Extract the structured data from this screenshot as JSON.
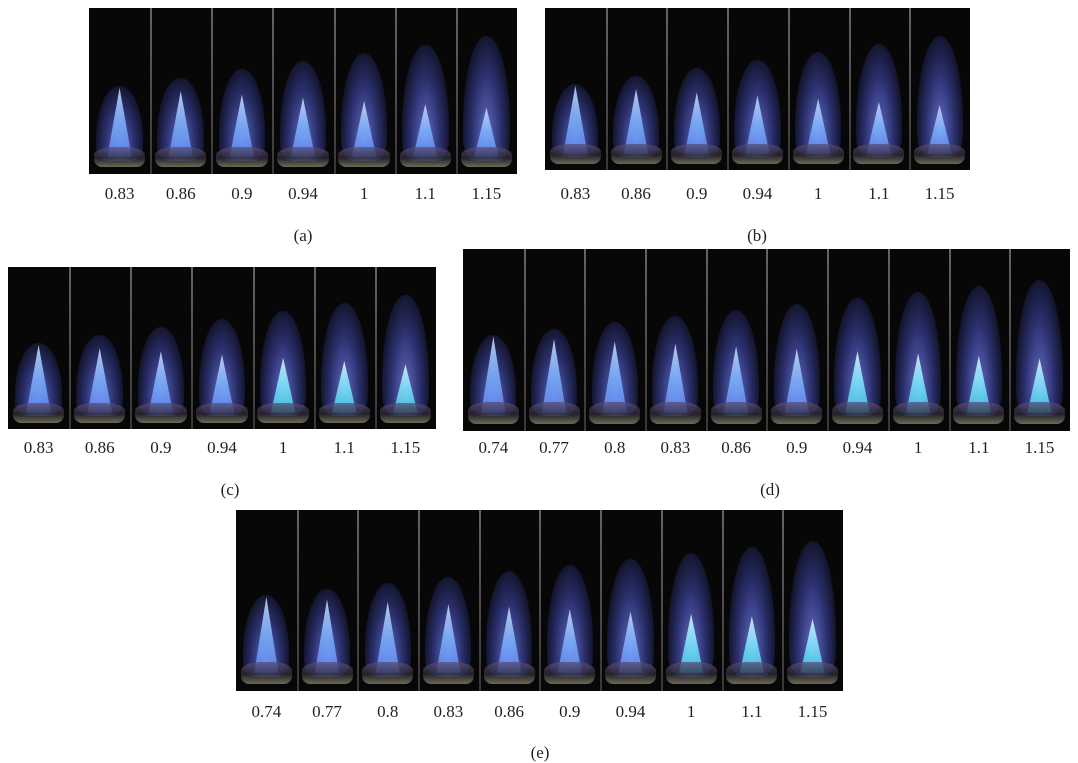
{
  "panels": [
    {
      "caption": "(a)",
      "labels": [
        "0.83",
        "0.86",
        "0.9",
        "0.94",
        "1",
        "1.1",
        "1.15"
      ],
      "teal_from": 99
    },
    {
      "caption": "(b)",
      "labels": [
        "0.83",
        "0.86",
        "0.9",
        "0.94",
        "1",
        "1.1",
        "1.15"
      ],
      "teal_from": 99
    },
    {
      "caption": "(c)",
      "labels": [
        "0.83",
        "0.86",
        "0.9",
        "0.94",
        "1",
        "1.1",
        "1.15"
      ],
      "teal_from": 4
    },
    {
      "caption": "(d)",
      "labels": [
        "0.74",
        "0.77",
        "0.8",
        "0.83",
        "0.86",
        "0.9",
        "0.94",
        "1",
        "1.1",
        "1.15"
      ],
      "teal_from": 6
    },
    {
      "caption": "(e)",
      "labels": [
        "0.74",
        "0.77",
        "0.8",
        "0.83",
        "0.86",
        "0.9",
        "0.94",
        "1",
        "1.1",
        "1.15"
      ],
      "teal_from": 7
    }
  ]
}
